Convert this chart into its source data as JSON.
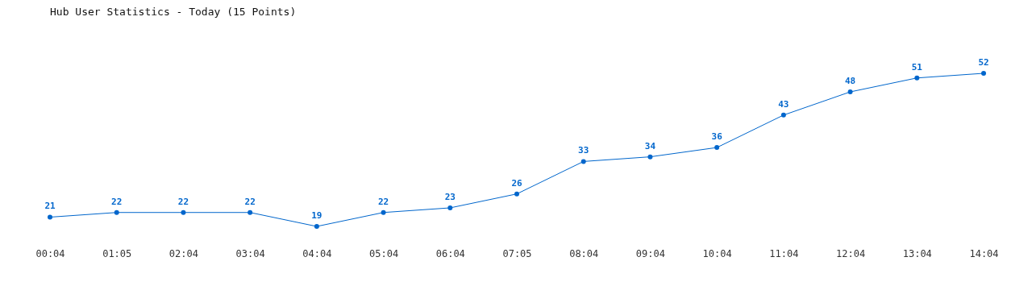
{
  "chart_data": {
    "type": "line",
    "title": "Hub User Statistics - Today (15 Points)",
    "categories": [
      "00:04",
      "01:05",
      "02:04",
      "03:04",
      "04:04",
      "05:04",
      "06:04",
      "07:05",
      "08:04",
      "09:04",
      "10:04",
      "11:04",
      "12:04",
      "13:04",
      "14:04"
    ],
    "series": [
      {
        "color": "#0066cc",
        "values": [
          21,
          22,
          22,
          22,
          19,
          22,
          23,
          26,
          33,
          34,
          36,
          43,
          48,
          51,
          52
        ]
      }
    ],
    "data_labels": true,
    "marker": "circle",
    "grid": false,
    "tick_labels": "x"
  }
}
